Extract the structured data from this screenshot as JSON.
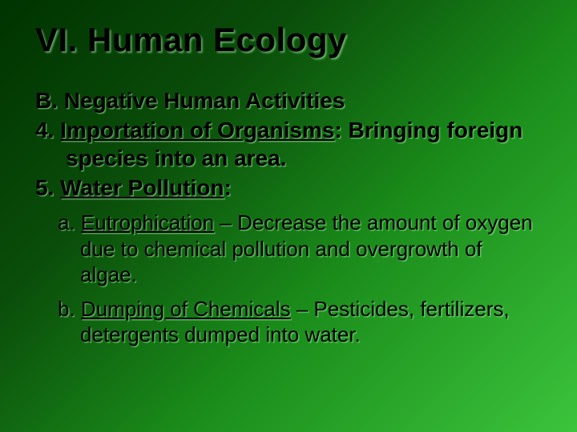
{
  "slide": {
    "title": "VI. Human Ecology",
    "title_fontsize": 42,
    "subheading": "B. Negative Human Activities",
    "body_fontsize": 28,
    "items": [
      {
        "number": "4. ",
        "term": "Importation of Organisms",
        "rest": ": Bringing foreign species into an area."
      },
      {
        "number": "5. ",
        "term": "Water Pollution",
        "rest": ":"
      }
    ],
    "subitems": [
      {
        "letter": "a. ",
        "term": "Eutrophication",
        "rest": " – Decrease the amount of oxygen due to chemical pollution and overgrowth of algae."
      },
      {
        "letter": "b. ",
        "term": "Dumping of Chemicals",
        "rest": " – Pesticides, fertilizers, detergents dumped into water."
      }
    ],
    "sub_fontsize": 26,
    "colors": {
      "bg_dark": "#003300",
      "bg_light": "#3cc43c",
      "text": "#000000",
      "shadow": "rgba(160,230,160,0.55)"
    }
  }
}
